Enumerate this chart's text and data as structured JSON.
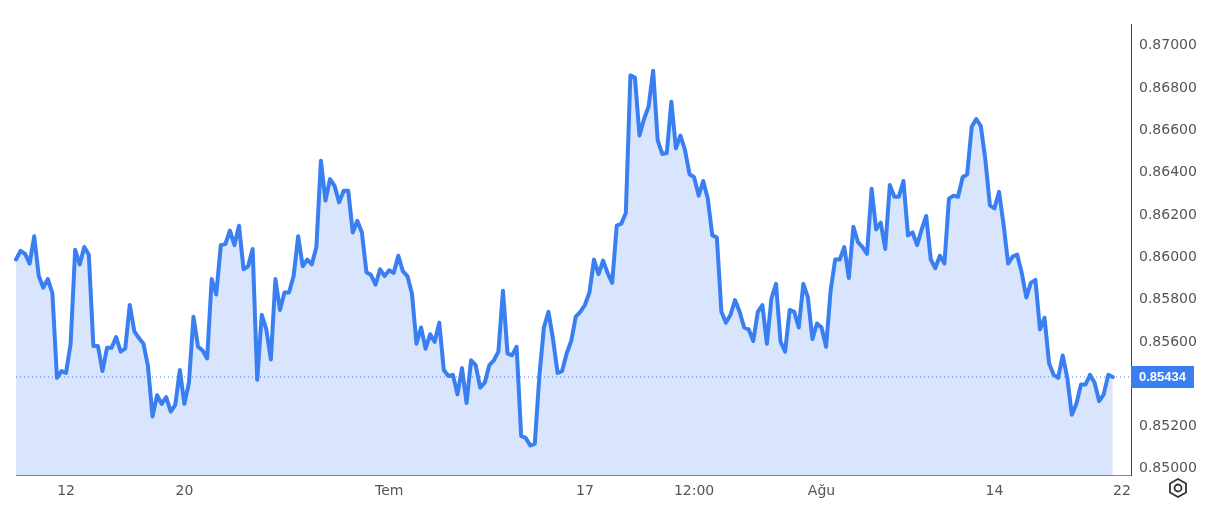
{
  "chart_data": {
    "type": "area",
    "categories": [
      null,
      null,
      null,
      null,
      null,
      null,
      null,
      null,
      null,
      null,
      null,
      "12",
      null,
      null,
      null,
      null,
      null,
      null,
      null,
      null,
      null,
      null,
      null,
      null,
      null,
      null,
      null,
      null,
      null,
      null,
      null,
      null,
      null,
      null,
      null,
      null,
      null,
      "20",
      null,
      null,
      null,
      null,
      null,
      null,
      null,
      null,
      null,
      null,
      null,
      null,
      null,
      null,
      null,
      null,
      null,
      null,
      null,
      null,
      null,
      null,
      null,
      null,
      null,
      null,
      null,
      null,
      null,
      null,
      null,
      null,
      null,
      null,
      null,
      null,
      null,
      null,
      null,
      null,
      null,
      null,
      null,
      null,
      "Tem",
      null,
      null,
      null,
      null,
      null,
      null,
      null,
      null,
      null,
      null,
      null,
      null,
      null,
      null,
      null,
      null,
      null,
      null,
      null,
      null,
      null,
      null,
      null,
      null,
      null,
      null,
      null,
      null,
      null,
      null,
      null,
      null,
      null,
      null,
      null,
      null,
      null,
      null,
      null,
      null,
      null,
      null,
      "17",
      null,
      null,
      null,
      null,
      null,
      null,
      null,
      null,
      null,
      null,
      null,
      null,
      null,
      null,
      null,
      null,
      null,
      null,
      null,
      null,
      null,
      null,
      null,
      "12:00",
      null,
      null,
      null,
      null,
      null,
      null,
      null,
      null,
      null,
      null,
      null,
      null,
      null,
      null,
      null,
      null,
      null,
      null,
      null,
      null,
      null,
      null,
      null,
      null,
      null,
      null,
      null,
      "Ağu",
      null,
      null,
      null,
      null,
      null,
      null,
      null,
      null,
      null,
      null,
      null,
      null,
      null,
      null,
      null,
      null,
      null,
      null,
      null,
      null,
      null,
      null,
      null,
      null,
      null,
      null,
      null,
      null,
      null,
      null,
      null,
      null,
      null,
      null,
      null,
      null,
      null,
      "14",
      null,
      null,
      null,
      null,
      null,
      null,
      null,
      null,
      null,
      null,
      null,
      null,
      null,
      null,
      null,
      null,
      null,
      null,
      null,
      null,
      null,
      null,
      null,
      null,
      null,
      null,
      null,
      "22",
      null,
      null
    ],
    "series": [
      {
        "color": "#3a7ff2",
        "values": [
          0.85989,
          0.8603,
          0.86016,
          0.8597,
          0.86099,
          0.85911,
          0.85856,
          0.85897,
          0.85829,
          0.8543,
          0.85462,
          0.85453,
          0.85591,
          0.86035,
          0.85966,
          0.86048,
          0.86012,
          0.85581,
          0.85581,
          0.85462,
          0.85572,
          0.85572,
          0.85623,
          0.85554,
          0.85568,
          0.85774,
          0.8565,
          0.85618,
          0.85591,
          0.85485,
          0.85247,
          0.85348,
          0.85307,
          0.85339,
          0.8527,
          0.85302,
          0.85467,
          0.85307,
          0.85407,
          0.85719,
          0.85577,
          0.85559,
          0.85522,
          0.85897,
          0.85824,
          0.86057,
          0.86062,
          0.86126,
          0.86057,
          0.86149,
          0.85943,
          0.85957,
          0.86039,
          0.85421,
          0.85728,
          0.85659,
          0.85517,
          0.85897,
          0.85751,
          0.85833,
          0.85833,
          0.85911,
          0.86099,
          0.85957,
          0.85989,
          0.85966,
          0.86048,
          0.86456,
          0.86268,
          0.86369,
          0.86337,
          0.86259,
          0.86314,
          0.86314,
          0.86117,
          0.86172,
          0.86117,
          0.85929,
          0.85916,
          0.8587,
          0.85943,
          0.85911,
          0.85938,
          0.85925,
          0.86007,
          0.85934,
          0.85911,
          0.85829,
          0.85591,
          0.85668,
          0.85568,
          0.85636,
          0.856,
          0.85691,
          0.85467,
          0.85439,
          0.85444,
          0.85352,
          0.85476,
          0.85311,
          0.85513,
          0.8549,
          0.85384,
          0.85407,
          0.8549,
          0.85513,
          0.85554,
          0.85842,
          0.85545,
          0.85536,
          0.85577,
          0.85156,
          0.85146,
          0.8511,
          0.85119,
          0.85439,
          0.85668,
          0.85742,
          0.85613,
          0.85453,
          0.85462,
          0.85545,
          0.85604,
          0.85719,
          0.85742,
          0.85774,
          0.85833,
          0.85989,
          0.8592,
          0.85984,
          0.85925,
          0.85879,
          0.86149,
          0.86158,
          0.86209,
          0.86859,
          0.86849,
          0.86575,
          0.86653,
          0.86712,
          0.86881,
          0.86552,
          0.86488,
          0.86492,
          0.86735,
          0.86515,
          0.86575,
          0.86506,
          0.86392,
          0.86378,
          0.86291,
          0.8636,
          0.86277,
          0.86103,
          0.86094,
          0.85742,
          0.85691,
          0.85728,
          0.85797,
          0.85742,
          0.85668,
          0.85659,
          0.85604,
          0.85742,
          0.85774,
          0.85591,
          0.85806,
          0.85874,
          0.856,
          0.85554,
          0.85751,
          0.85742,
          0.85668,
          0.85874,
          0.8581,
          0.85613,
          0.85687,
          0.85668,
          0.85577,
          0.85842,
          0.85989,
          0.85989,
          0.86048,
          0.85902,
          0.86144,
          0.86071,
          0.86048,
          0.86016,
          0.86323,
          0.86131,
          0.86163,
          0.86039,
          0.86341,
          0.86286,
          0.86286,
          0.8636,
          0.86103,
          0.86117,
          0.86057,
          0.86131,
          0.86195,
          0.85989,
          0.85948,
          0.86007,
          0.8597,
          0.86277,
          0.86291,
          0.86286,
          0.86378,
          0.86392,
          0.86616,
          0.86653,
          0.8662,
          0.8646,
          0.86245,
          0.86231,
          0.86309,
          0.86154,
          0.8597,
          0.86003,
          0.86012,
          0.85925,
          0.8581,
          0.85879,
          0.85893,
          0.85659,
          0.85714,
          0.85499,
          0.85444,
          0.8543,
          0.85536,
          0.8543,
          0.85256,
          0.85307,
          0.85398,
          0.85398,
          0.85444,
          0.85407,
          0.8532,
          0.85352,
          0.85444,
          0.85434,
          null,
          null,
          null,
          null
        ]
      }
    ],
    "ylim": [
      0.8497,
      0.871
    ],
    "yticks": [
      {
        "value": 0.85,
        "label": "0.85000"
      },
      {
        "value": 0.852,
        "label": "0.85200"
      },
      {
        "value": 0.856,
        "label": "0.85600"
      },
      {
        "value": 0.858,
        "label": "0.85800"
      },
      {
        "value": 0.86,
        "label": "0.86000"
      },
      {
        "value": 0.862,
        "label": "0.86200"
      },
      {
        "value": 0.864,
        "label": "0.86400"
      },
      {
        "value": 0.866,
        "label": "0.86600"
      },
      {
        "value": 0.868,
        "label": "0.86800"
      },
      {
        "value": 0.87,
        "label": "0.87000"
      }
    ],
    "ref_lines": [
      {
        "axis": "y",
        "value": 0.85434,
        "label": "0.85434",
        "color": "#3a7ff2",
        "line_style": "dotted"
      }
    ],
    "grid": false,
    "legend": false,
    "marker": "none",
    "line_style": "solid"
  }
}
